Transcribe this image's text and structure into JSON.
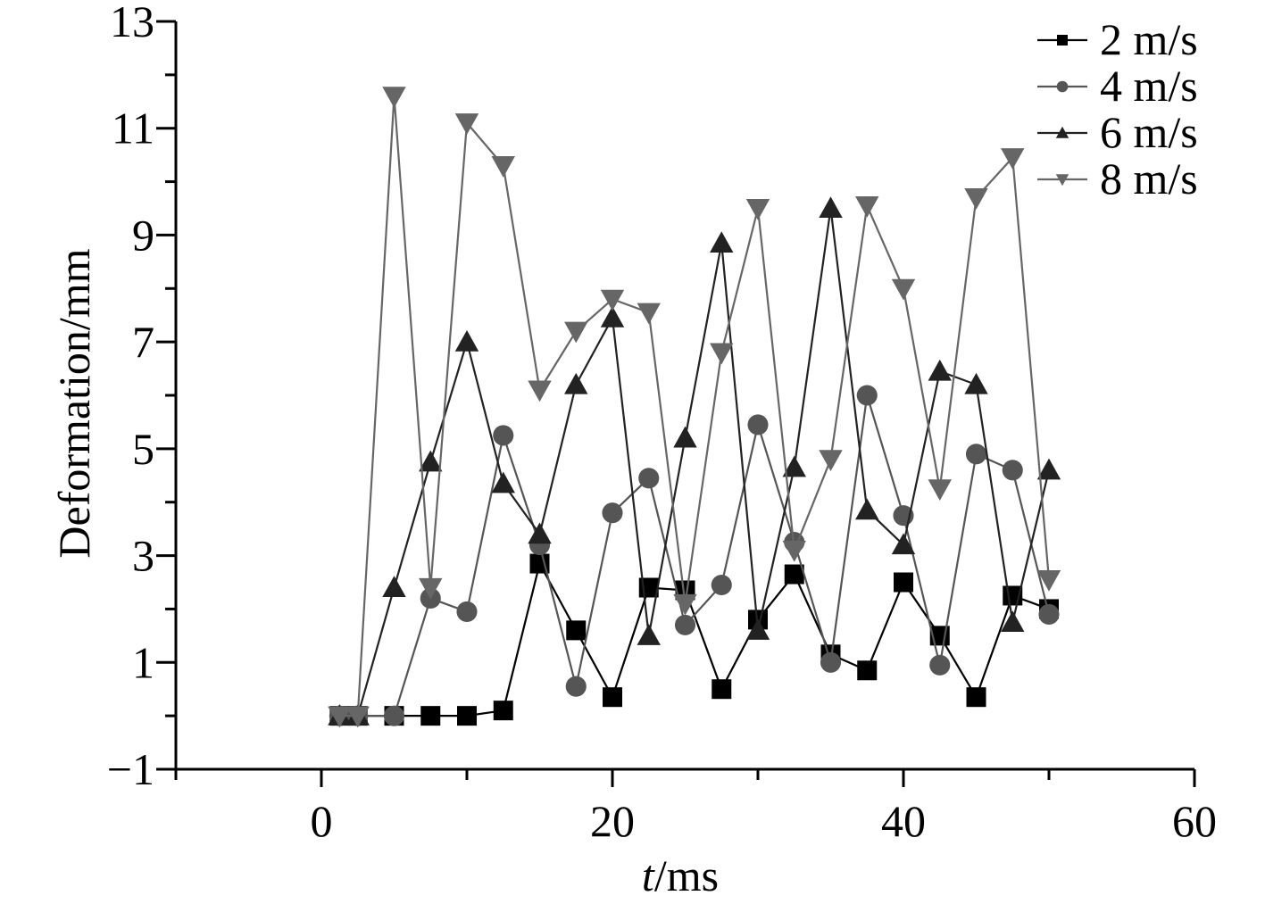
{
  "chart_data": {
    "type": "line",
    "title": "",
    "xlabel_italic": "t",
    "xlabel_unit": "/ms",
    "ylabel": "Deformation/mm",
    "xlim": [
      -10,
      60
    ],
    "ylim": [
      -1,
      13
    ],
    "xticks": [
      0,
      20,
      40,
      60
    ],
    "xtick_labels": [
      "0",
      "20",
      "40",
      "60"
    ],
    "yticks": [
      -1,
      1,
      3,
      5,
      7,
      9,
      11,
      13
    ],
    "ytick_labels": [
      "−1",
      "1",
      "3",
      "5",
      "7",
      "9",
      "11",
      "13"
    ],
    "x": [
      1.25,
      2.5,
      5,
      7.5,
      10,
      12.5,
      15,
      17.5,
      20,
      22.5,
      25,
      27.5,
      30,
      32.5,
      35,
      37.5,
      40,
      42.5,
      45,
      47.5,
      50
    ],
    "legend_position": "top-right",
    "series": [
      {
        "name": "2 m/s",
        "marker": "square",
        "color": "#000000",
        "values": [
          0,
          0,
          0,
          0,
          0,
          0.1,
          2.85,
          1.6,
          0.35,
          2.4,
          2.35,
          0.5,
          1.8,
          2.65,
          1.15,
          0.85,
          2.5,
          1.5,
          0.35,
          2.25,
          2.0
        ]
      },
      {
        "name": "4 m/s",
        "marker": "circle",
        "color": "#555555",
        "values": [
          0,
          0,
          0,
          2.2,
          1.95,
          5.25,
          3.2,
          0.55,
          3.8,
          4.45,
          1.7,
          2.45,
          5.45,
          3.25,
          1.0,
          6.0,
          3.75,
          0.95,
          4.9,
          4.6,
          1.9
        ]
      },
      {
        "name": "6 m/s",
        "marker": "triangle-up",
        "color": "#222222",
        "values": [
          0,
          0,
          2.4,
          4.75,
          7.0,
          4.35,
          3.4,
          6.2,
          7.45,
          1.5,
          5.2,
          8.85,
          1.6,
          4.65,
          9.5,
          3.85,
          3.2,
          6.45,
          6.2,
          1.75,
          4.6
        ]
      },
      {
        "name": "8 m/s",
        "marker": "triangle-down",
        "color": "#666666",
        "values": [
          0,
          0,
          11.6,
          2.4,
          11.1,
          10.3,
          6.1,
          7.2,
          7.8,
          7.55,
          2.1,
          6.8,
          9.5,
          3.1,
          4.8,
          9.55,
          8.0,
          4.25,
          9.7,
          10.45,
          2.55
        ]
      }
    ]
  }
}
